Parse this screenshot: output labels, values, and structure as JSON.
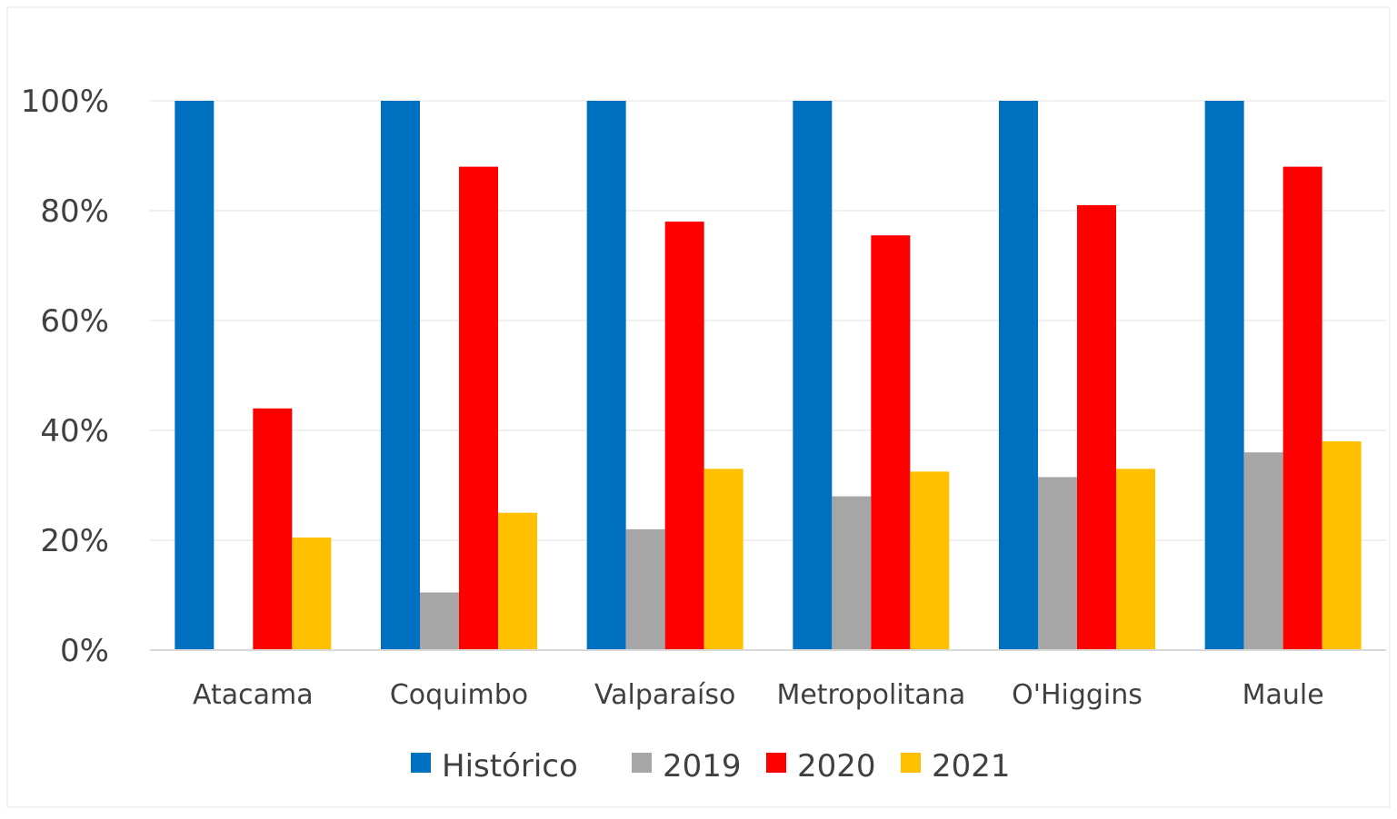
{
  "chart_data": {
    "type": "bar",
    "title": "",
    "xlabel": "",
    "ylabel": "",
    "ylim": [
      0,
      100
    ],
    "yticks": [
      0,
      20,
      40,
      60,
      80,
      100
    ],
    "ytick_suffix": "%",
    "grid": true,
    "legend_position": "bottom",
    "categories": [
      "Atacama",
      "Coquimbo",
      "Valparaíso",
      "Metropolitana",
      "O'Higgins",
      "Maule"
    ],
    "series": [
      {
        "name": "Histórico",
        "color": "#0070C0",
        "values": [
          100,
          100,
          100,
          100,
          100,
          100
        ]
      },
      {
        "name": "2019",
        "color": "#A6A6A6",
        "values": [
          null,
          10.5,
          22,
          28,
          31.5,
          36
        ]
      },
      {
        "name": "2020",
        "color": "#FF0000",
        "values": [
          44,
          88,
          78,
          75.5,
          81,
          88
        ]
      },
      {
        "name": "2021",
        "color": "#FFC000",
        "values": [
          20.5,
          25,
          33,
          32.5,
          33,
          38
        ]
      }
    ]
  }
}
